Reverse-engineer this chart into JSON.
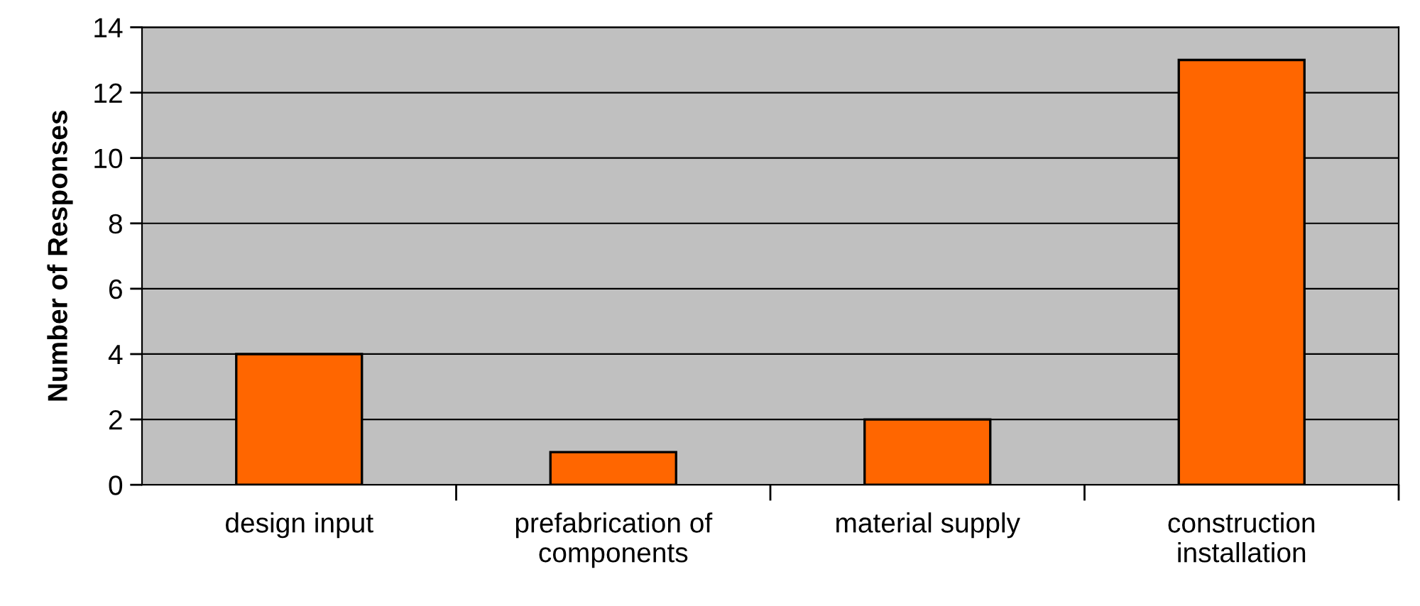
{
  "chart_data": {
    "type": "bar",
    "ylabel": "Number of Responses",
    "categories": [
      "design input",
      "prefabrication of\ncomponents",
      "material supply",
      "construction\ninstallation"
    ],
    "values": [
      4,
      1,
      2,
      13
    ],
    "color": "#ff6600",
    "ylim": [
      0,
      14
    ],
    "yticks": [
      0,
      2,
      4,
      6,
      8,
      10,
      12,
      14
    ],
    "grid": "y"
  }
}
